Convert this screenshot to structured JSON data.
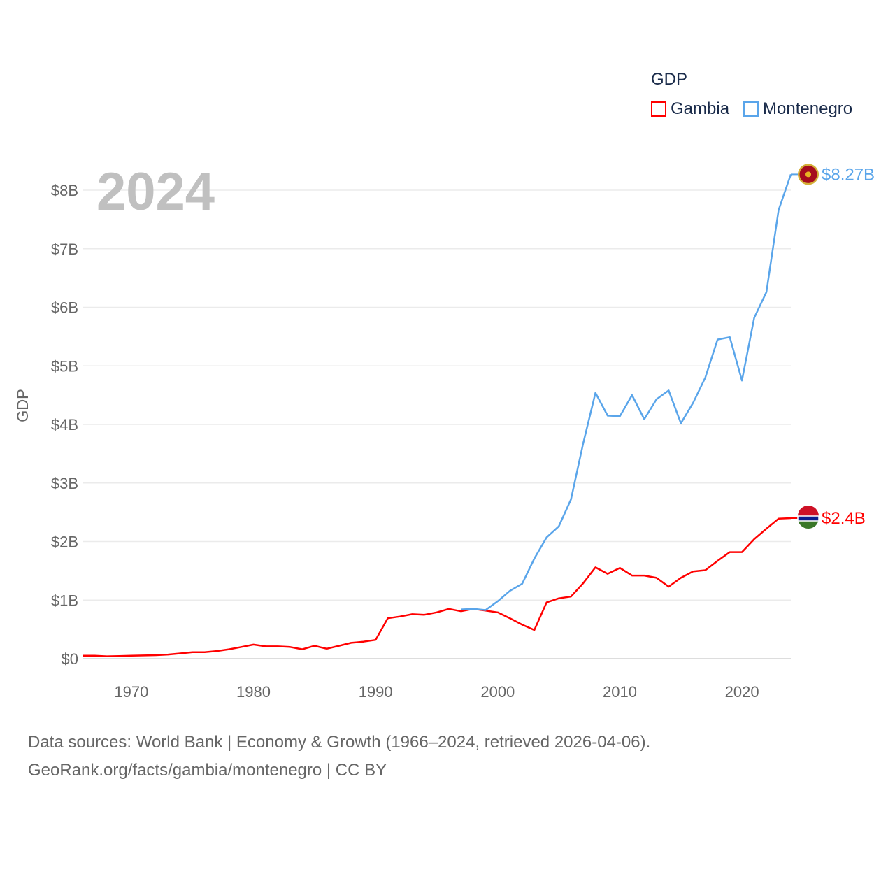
{
  "chart_data": {
    "type": "line",
    "title": "GDP",
    "year_label": "2024",
    "xlabel": "",
    "ylabel": "GDP",
    "xlim": [
      1966,
      2024
    ],
    "ylim": [
      0,
      8.5
    ],
    "x_ticks": [
      1970,
      1980,
      1990,
      2000,
      2010,
      2020
    ],
    "y_ticks": [
      {
        "value": 0,
        "label": "$0"
      },
      {
        "value": 1,
        "label": "$1B"
      },
      {
        "value": 2,
        "label": "$2B"
      },
      {
        "value": 3,
        "label": "$3B"
      },
      {
        "value": 4,
        "label": "$4B"
      },
      {
        "value": 5,
        "label": "$5B"
      },
      {
        "value": 6,
        "label": "$6B"
      },
      {
        "value": 7,
        "label": "$7B"
      },
      {
        "value": 8,
        "label": "$8B"
      }
    ],
    "grid": true,
    "legend_position": "top-right",
    "series": [
      {
        "name": "Gambia",
        "color": "#ff0000",
        "end_label": "$2.4B",
        "flag": "gambia-flag",
        "x_start": 1966,
        "values": [
          0.05,
          0.05,
          0.04,
          0.045,
          0.05,
          0.055,
          0.06,
          0.07,
          0.09,
          0.11,
          0.11,
          0.13,
          0.16,
          0.2,
          0.24,
          0.21,
          0.21,
          0.2,
          0.16,
          0.22,
          0.17,
          0.22,
          0.27,
          0.29,
          0.32,
          0.69,
          0.72,
          0.76,
          0.75,
          0.79,
          0.85,
          0.81,
          0.85,
          0.82,
          0.79,
          0.69,
          0.58,
          0.49,
          0.96,
          1.03,
          1.06,
          1.29,
          1.56,
          1.45,
          1.55,
          1.42,
          1.42,
          1.38,
          1.23,
          1.38,
          1.49,
          1.51,
          1.67,
          1.82,
          1.82,
          2.04,
          2.22,
          2.39,
          2.4
        ]
      },
      {
        "name": "Montenegro",
        "color": "#5aa5ea",
        "end_label": "$8.27B",
        "flag": "montenegro-flag",
        "x_start": 1997,
        "values": [
          0.84,
          0.85,
          0.83,
          0.98,
          1.16,
          1.28,
          1.71,
          2.07,
          2.26,
          2.72,
          3.68,
          4.54,
          4.15,
          4.14,
          4.5,
          4.09,
          4.43,
          4.58,
          4.02,
          4.37,
          4.8,
          5.45,
          5.49,
          4.75,
          5.82,
          6.26,
          7.66,
          8.27
        ]
      }
    ]
  },
  "footer": {
    "line1": "Data sources: World Bank | Economy & Growth (1966–2024, retrieved 2026-04-06).",
    "line2": "GeoRank.org/facts/gambia/montenegro | CC BY"
  }
}
